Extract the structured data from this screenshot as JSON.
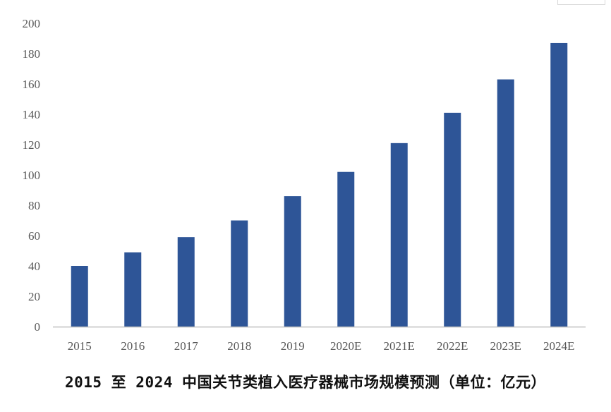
{
  "chart_data": {
    "type": "bar",
    "categories": [
      "2015",
      "2016",
      "2017",
      "2018",
      "2019",
      "2020E",
      "2021E",
      "2022E",
      "2023E",
      "2024E"
    ],
    "values": [
      40,
      49,
      59,
      70,
      86,
      102,
      121,
      141,
      163,
      187
    ],
    "title": "2015 至 2024 中国关节类植入医疗器械市场规模预测（单位：亿元）",
    "xlabel": "",
    "ylabel": "",
    "ylim": [
      0,
      200
    ],
    "yticks": [
      "0",
      "20",
      "40",
      "60",
      "80",
      "100",
      "120",
      "140",
      "160",
      "180",
      "200"
    ],
    "grid": false,
    "legend": "none",
    "bar_color": "#2E5597",
    "axis_color": "#BFBFBF"
  }
}
